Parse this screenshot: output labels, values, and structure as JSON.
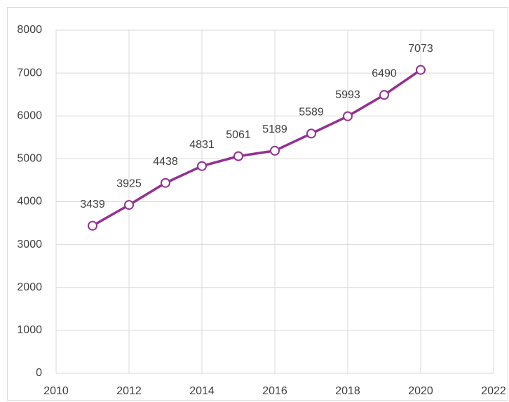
{
  "chart_data": {
    "type": "line",
    "x": [
      2011,
      2012,
      2013,
      2014,
      2015,
      2016,
      2017,
      2018,
      2019,
      2020
    ],
    "values": [
      3439,
      3925,
      4438,
      4831,
      5061,
      5189,
      5589,
      5993,
      6490,
      7073
    ],
    "color": "#933192",
    "xlim": [
      2010,
      2022
    ],
    "xticks": [
      2010,
      2012,
      2014,
      2016,
      2018,
      2020,
      2022
    ],
    "ylim": [
      0,
      8000
    ],
    "yticks": [
      0,
      1000,
      2000,
      3000,
      4000,
      5000,
      6000,
      7000,
      8000
    ],
    "grid": true
  }
}
